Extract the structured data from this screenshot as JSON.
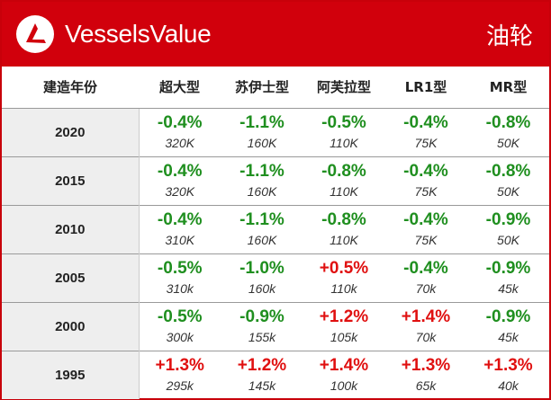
{
  "header": {
    "brand": "VesselsValue",
    "title": "油轮"
  },
  "colors": {
    "brand_red": "#d1000c",
    "negative": "#1f8f1f",
    "positive": "#e01010"
  },
  "table": {
    "columns": [
      "建造年份",
      "超大型",
      "苏伊士型",
      "阿芙拉型",
      "LR1型",
      "MR型"
    ],
    "rows": [
      {
        "year": "2020",
        "cells": [
          {
            "change": "-0.4%",
            "value": "320K"
          },
          {
            "change": "-1.1%",
            "value": "160K"
          },
          {
            "change": "-0.5%",
            "value": "110K"
          },
          {
            "change": "-0.4%",
            "value": "75K"
          },
          {
            "change": "-0.8%",
            "value": "50K"
          }
        ]
      },
      {
        "year": "2015",
        "cells": [
          {
            "change": "-0.4%",
            "value": "320K"
          },
          {
            "change": "-1.1%",
            "value": "160K"
          },
          {
            "change": "-0.8%",
            "value": "110K"
          },
          {
            "change": "-0.4%",
            "value": "75K"
          },
          {
            "change": "-0.8%",
            "value": "50K"
          }
        ]
      },
      {
        "year": "2010",
        "cells": [
          {
            "change": "-0.4%",
            "value": "310K"
          },
          {
            "change": "-1.1%",
            "value": "160K"
          },
          {
            "change": "-0.8%",
            "value": "110K"
          },
          {
            "change": "-0.4%",
            "value": "75K"
          },
          {
            "change": "-0.9%",
            "value": "50K"
          }
        ]
      },
      {
        "year": "2005",
        "cells": [
          {
            "change": "-0.5%",
            "value": "310k"
          },
          {
            "change": "-1.0%",
            "value": "160k"
          },
          {
            "change": "+0.5%",
            "value": "110k"
          },
          {
            "change": "-0.4%",
            "value": "70k"
          },
          {
            "change": "-0.9%",
            "value": "45k"
          }
        ]
      },
      {
        "year": "2000",
        "cells": [
          {
            "change": "-0.5%",
            "value": "300k"
          },
          {
            "change": "-0.9%",
            "value": "155k"
          },
          {
            "change": "+1.2%",
            "value": "105k"
          },
          {
            "change": "+1.4%",
            "value": "70k"
          },
          {
            "change": "-0.9%",
            "value": "45k"
          }
        ]
      },
      {
        "year": "1995",
        "cells": [
          {
            "change": "+1.3%",
            "value": "295k"
          },
          {
            "change": "+1.2%",
            "value": "145k"
          },
          {
            "change": "+1.4%",
            "value": "100k"
          },
          {
            "change": "+1.3%",
            "value": "65k"
          },
          {
            "change": "+1.3%",
            "value": "40k"
          }
        ]
      }
    ]
  }
}
